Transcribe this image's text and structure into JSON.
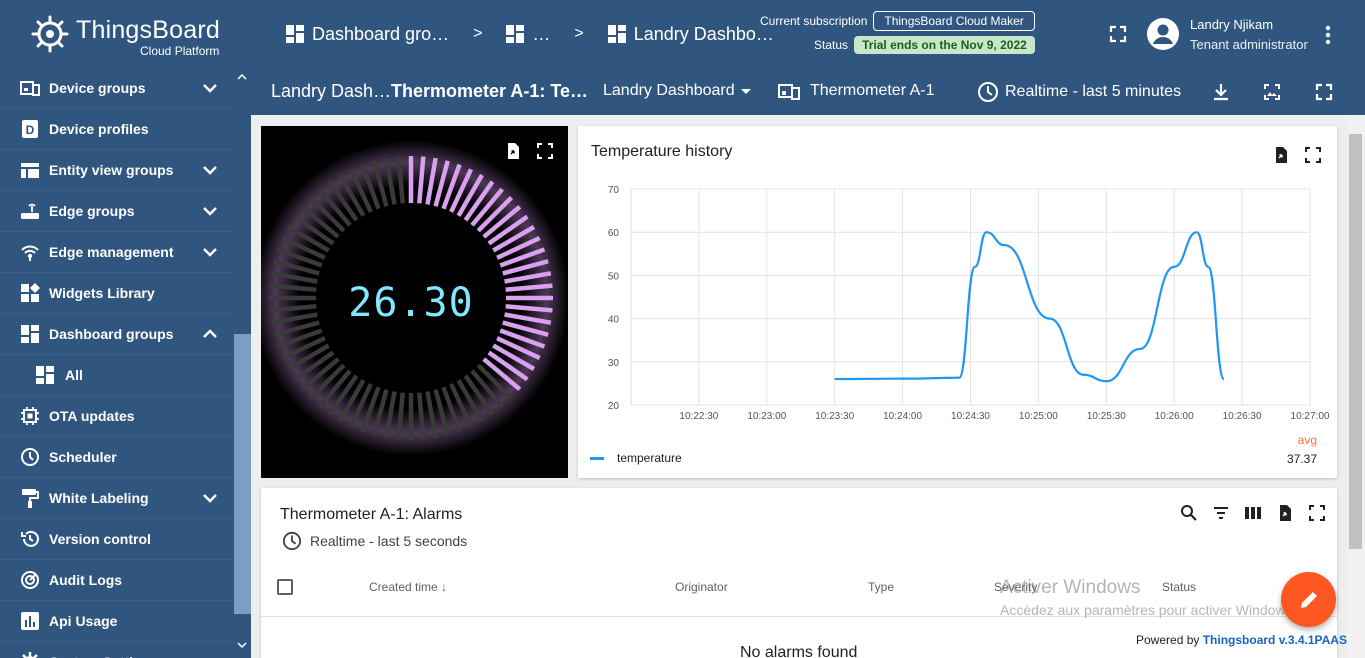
{
  "app": {
    "name": "ThingsBoard",
    "subtitle": "Cloud Platform",
    "brand_color": "#305680"
  },
  "breadcrumbs": [
    {
      "label": "Dashboard gro…",
      "icon": "dashboard-icon"
    },
    {
      "label": "…",
      "icon": "dashboard-icon"
    },
    {
      "label": "Landry Dashbo…",
      "icon": "dashboard-icon"
    }
  ],
  "breadcrumb_separator": ">",
  "subscription": {
    "label": "Current subscription",
    "plan": "ThingsBoard Cloud Maker",
    "status_label": "Status",
    "status_value": "Trial ends on the Nov 9, 2022"
  },
  "user": {
    "name": "Landry Njikam",
    "role": "Tenant administrator"
  },
  "sidebar": {
    "items": [
      {
        "label": "Device groups",
        "icon": "devices-icon",
        "expandable": true
      },
      {
        "label": "Device profiles",
        "icon": "device-profile-icon",
        "expandable": false
      },
      {
        "label": "Entity view groups",
        "icon": "view-groups-icon",
        "expandable": true
      },
      {
        "label": "Edge groups",
        "icon": "router-icon",
        "expandable": true
      },
      {
        "label": "Edge management",
        "icon": "wifi-signal-icon",
        "expandable": true
      },
      {
        "label": "Widgets Library",
        "icon": "widgets-icon",
        "expandable": false
      },
      {
        "label": "Dashboard groups",
        "icon": "dashboard-icon",
        "expandable": true,
        "expanded": true
      },
      {
        "label": "All",
        "icon": "dashboard-icon",
        "sub": true
      },
      {
        "label": "OTA updates",
        "icon": "chip-icon",
        "expandable": false
      },
      {
        "label": "Scheduler",
        "icon": "clock-icon",
        "expandable": false
      },
      {
        "label": "White Labeling",
        "icon": "paint-roller-icon",
        "expandable": true
      },
      {
        "label": "Version control",
        "icon": "history-icon",
        "expandable": false
      },
      {
        "label": "Audit Logs",
        "icon": "track-changes-icon",
        "expandable": false
      },
      {
        "label": "Api Usage",
        "icon": "bar-chart-icon",
        "expandable": false
      },
      {
        "label": "System Settings",
        "icon": "gear-icon",
        "expandable": true
      }
    ]
  },
  "toolbar": {
    "title_short": "Landry Dash…",
    "state_title": "Thermometer A-1: Te…",
    "dashboard_select": "Landry Dashboard",
    "entity": "Thermometer A-1",
    "timewindow": "Realtime - last 5 minutes"
  },
  "gauge": {
    "value": "26.30",
    "value_number": 26.3,
    "min": 0,
    "max": 100,
    "fill_fraction": 0.38,
    "active_color": "#d9a0f0",
    "inactive_color": "#3a3a3a",
    "value_color": "#80e8ff"
  },
  "temperature_widget": {
    "title": "Temperature history",
    "legend": {
      "series": "temperature",
      "avg_label": "avg",
      "avg_value": "37.37"
    }
  },
  "chart_data": {
    "type": "line",
    "title": "Temperature history",
    "xlabel": "",
    "ylabel": "",
    "ylim": [
      20,
      70
    ],
    "yticks": [
      "70",
      "60",
      "50",
      "40",
      "30",
      "20"
    ],
    "xticks": [
      "10:22:30",
      "10:23:00",
      "10:23:30",
      "10:24:00",
      "10:24:30",
      "10:25:00",
      "10:25:30",
      "10:26:00",
      "10:26:30",
      "10:27:00"
    ],
    "xlim_seconds": [
      0,
      300
    ],
    "grid": true,
    "legend_position": "bottom-left",
    "series": [
      {
        "name": "temperature",
        "color": "#2196f3",
        "points": [
          [
            "10:23:30",
            26.0
          ],
          [
            "10:24:00",
            26.1
          ],
          [
            "10:24:25",
            26.3
          ],
          [
            "10:24:32",
            52.0
          ],
          [
            "10:24:37",
            60.0
          ],
          [
            "10:24:45",
            57.0
          ],
          [
            "10:25:05",
            40.0
          ],
          [
            "10:25:20",
            27.0
          ],
          [
            "10:25:30",
            25.5
          ],
          [
            "10:25:45",
            33.0
          ],
          [
            "10:26:00",
            52.0
          ],
          [
            "10:26:10",
            60.0
          ],
          [
            "10:26:15",
            52.0
          ],
          [
            "10:26:22",
            26.0
          ]
        ]
      }
    ]
  },
  "alarms": {
    "title": "Thermometer A-1: Alarms",
    "timewindow": "Realtime - last 5 seconds",
    "columns": [
      "Created time",
      "Originator",
      "Type",
      "Severity",
      "Status"
    ],
    "empty_text": "No alarms found"
  },
  "overlay": {
    "windows_title": "Activer Windows",
    "windows_sub": "Accédez aux paramètres pour activer Windows.",
    "powered_prefix": "Powered by",
    "powered_link": "Thingsboard v.3.4.1PAAS"
  }
}
